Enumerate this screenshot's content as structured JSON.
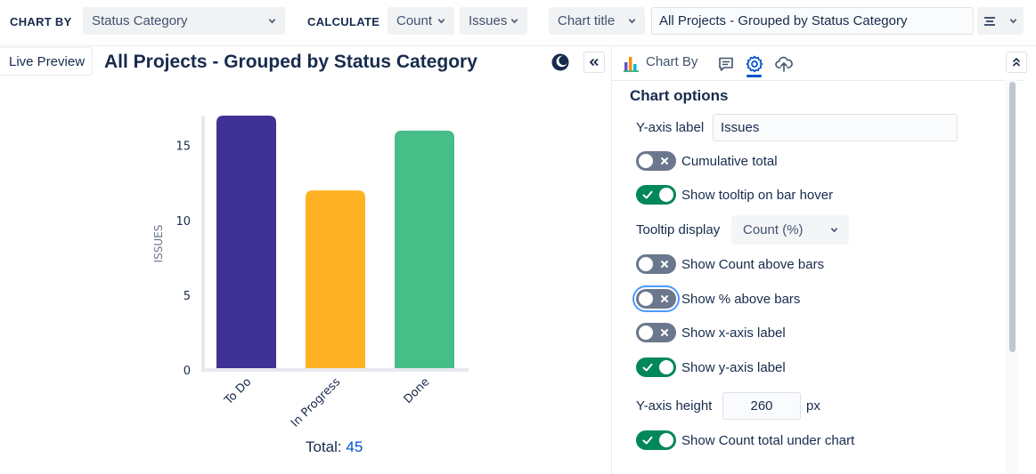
{
  "toolbar": {
    "chart_by_label": "CHART BY",
    "chart_by_value": "Status Category",
    "calculate_label": "CALCULATE",
    "calculate_value": "Count",
    "calculate_field": "Issues",
    "title_mode": "Chart title",
    "title_input": "All Projects - Grouped by Status Category",
    "menu_icon": "align-icon"
  },
  "preview": {
    "tab_label": "Live Preview",
    "title": "All Projects - Grouped by Status Category",
    "total_label": "Total:",
    "total_value": "45"
  },
  "chart_data": {
    "type": "bar",
    "categories": [
      "To Do",
      "In Progress",
      "Done"
    ],
    "values": [
      17,
      12,
      16
    ],
    "colors": [
      "#403294",
      "#ffb224",
      "#47bd88"
    ],
    "ylabel": "ISSUES",
    "ylim": [
      0,
      17
    ],
    "yticks": [
      0,
      5,
      10,
      15
    ],
    "grid": false
  },
  "panel": {
    "tab_chart_by": "Chart By",
    "active_tab": "settings",
    "options_title": "Chart options",
    "y_axis_label_label": "Y-axis label",
    "y_axis_label_value": "Issues",
    "cumulative_total": {
      "label": "Cumulative total",
      "on": false
    },
    "show_tooltip": {
      "label": "Show tooltip on bar hover",
      "on": true
    },
    "tooltip_display_label": "Tooltip display",
    "tooltip_display_value": "Count (%)",
    "show_count_above": {
      "label": "Show Count above bars",
      "on": false
    },
    "show_pct_above": {
      "label": "Show % above bars",
      "on": false
    },
    "show_x_axis_label": {
      "label": "Show x-axis label",
      "on": false
    },
    "show_y_axis_label": {
      "label": "Show y-axis label",
      "on": true
    },
    "y_axis_height_label": "Y-axis height",
    "y_axis_height_value": "260",
    "y_axis_height_unit": "px",
    "show_count_total": {
      "label": "Show Count total under chart",
      "on": true
    }
  },
  "colors": {
    "toggle_on": "#00875a",
    "toggle_off": "#6b778c",
    "accent": "#0052cc"
  }
}
